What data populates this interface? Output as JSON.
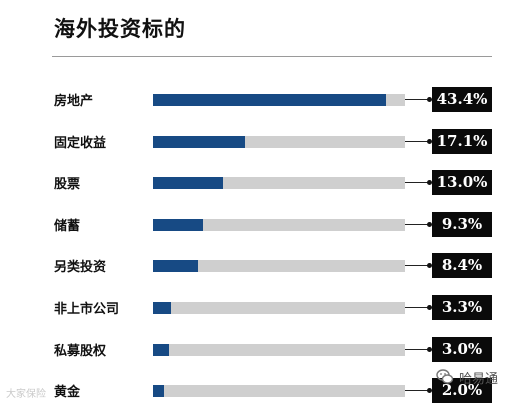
{
  "page": {
    "title": "海外投资标的"
  },
  "chart_data": {
    "type": "bar",
    "orientation": "horizontal",
    "title": "海外投资标的",
    "categories": [
      "房地产",
      "固定收益",
      "股票",
      "储蓄",
      "另类投资",
      "非上市公司",
      "私募股权",
      "黄金"
    ],
    "values": [
      43.4,
      17.1,
      13.0,
      9.3,
      8.4,
      3.3,
      3.0,
      2.0
    ],
    "value_labels": [
      "43.4%",
      "17.1%",
      "13.0%",
      "9.3%",
      "8.4%",
      "3.3%",
      "3.0%",
      "2.0%"
    ],
    "xlim": [
      0,
      47
    ],
    "grid": false,
    "legend": "none",
    "colors": {
      "bar": "#174a84",
      "track": "#cfcfcf",
      "label_bg": "#0a0a0a",
      "label_text": "#ffffff"
    }
  },
  "watermarks": {
    "left_text": "大家保险",
    "right_text": "哈易通",
    "right_icon": "wechat-icon"
  }
}
